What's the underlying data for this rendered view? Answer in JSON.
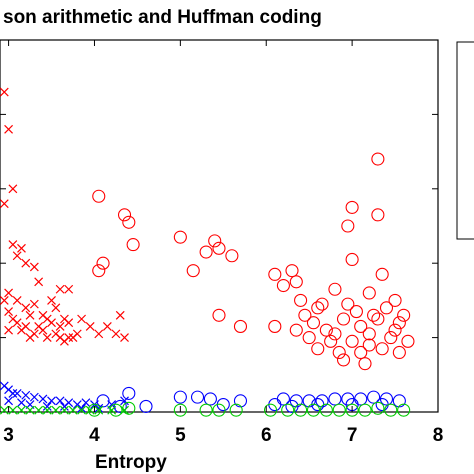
{
  "chart_data": {
    "type": "scatter",
    "title": "son arithmetic and Huffman coding",
    "xlabel": "Entropy",
    "ylabel": "",
    "xlim": [
      2.9,
      8.0
    ],
    "ylim": [
      0,
      10
    ],
    "xticks": [
      3,
      4,
      5,
      6,
      7,
      8
    ],
    "xtick_labels": [
      "3",
      "4",
      "5",
      "6",
      "7",
      "8"
    ],
    "yticks": [
      2,
      4,
      6,
      8
    ],
    "grid": false,
    "legend": "right, clipped",
    "series": [
      {
        "marker": "x",
        "color": "#ff0000",
        "points": [
          [
            2.95,
            8.6
          ],
          [
            3.0,
            7.6
          ],
          [
            3.05,
            6.0
          ],
          [
            2.95,
            5.6
          ],
          [
            3.1,
            4.2
          ],
          [
            3.05,
            4.5
          ],
          [
            3.15,
            4.4
          ],
          [
            3.2,
            4.0
          ],
          [
            3.3,
            3.9
          ],
          [
            3.35,
            3.5
          ],
          [
            3.5,
            3.0
          ],
          [
            3.6,
            3.3
          ],
          [
            3.7,
            3.3
          ],
          [
            3.85,
            2.5
          ],
          [
            3.95,
            2.3
          ],
          [
            4.15,
            2.3
          ],
          [
            4.35,
            2.0
          ],
          [
            3.0,
            3.2
          ],
          [
            3.1,
            3.0
          ],
          [
            3.2,
            2.8
          ],
          [
            3.3,
            2.9
          ],
          [
            3.4,
            2.6
          ],
          [
            3.5,
            2.4
          ],
          [
            3.6,
            2.3
          ],
          [
            3.7,
            2.4
          ],
          [
            3.8,
            2.1
          ],
          [
            3.05,
            2.5
          ],
          [
            3.15,
            2.2
          ],
          [
            3.25,
            2.0
          ],
          [
            3.35,
            2.3
          ],
          [
            3.45,
            2.0
          ],
          [
            3.55,
            2.1
          ],
          [
            3.65,
            1.9
          ],
          [
            3.75,
            2.0
          ],
          [
            2.95,
            3.0
          ],
          [
            3.0,
            2.7
          ],
          [
            3.1,
            2.4
          ],
          [
            3.2,
            2.3
          ],
          [
            3.3,
            2.1
          ],
          [
            3.4,
            2.2
          ],
          [
            3.6,
            2.0
          ],
          [
            3.7,
            2.0
          ],
          [
            4.05,
            2.1
          ],
          [
            4.25,
            2.1
          ],
          [
            4.3,
            2.6
          ],
          [
            3.55,
            2.8
          ],
          [
            3.25,
            2.6
          ],
          [
            3.0,
            2.2
          ],
          [
            3.45,
            2.5
          ],
          [
            3.65,
            2.5
          ]
        ]
      },
      {
        "marker": "o",
        "color": "#ff0000",
        "points": [
          [
            4.05,
            5.8
          ],
          [
            4.35,
            5.3
          ],
          [
            4.45,
            4.5
          ],
          [
            4.4,
            5.1
          ],
          [
            4.1,
            4.0
          ],
          [
            4.05,
            3.8
          ],
          [
            5.0,
            4.7
          ],
          [
            5.15,
            3.8
          ],
          [
            5.3,
            4.3
          ],
          [
            5.4,
            4.6
          ],
          [
            5.45,
            4.4
          ],
          [
            5.45,
            2.6
          ],
          [
            5.6,
            4.2
          ],
          [
            5.7,
            2.3
          ],
          [
            6.1,
            3.7
          ],
          [
            6.1,
            2.3
          ],
          [
            6.2,
            3.4
          ],
          [
            6.3,
            3.8
          ],
          [
            6.35,
            3.5
          ],
          [
            7.0,
            5.5
          ],
          [
            6.95,
            5.0
          ],
          [
            7.3,
            6.8
          ],
          [
            7.3,
            5.3
          ],
          [
            7.0,
            4.1
          ],
          [
            7.35,
            3.7
          ],
          [
            6.4,
            3.0
          ],
          [
            6.6,
            2.8
          ],
          [
            6.8,
            3.3
          ],
          [
            7.2,
            3.2
          ],
          [
            7.5,
            3.0
          ],
          [
            7.6,
            2.6
          ],
          [
            6.55,
            2.4
          ],
          [
            6.7,
            2.2
          ],
          [
            6.9,
            2.5
          ],
          [
            7.1,
            2.3
          ],
          [
            7.3,
            2.5
          ],
          [
            7.5,
            2.2
          ],
          [
            6.5,
            2.0
          ],
          [
            6.75,
            1.9
          ],
          [
            7.0,
            1.9
          ],
          [
            7.2,
            1.8
          ],
          [
            7.45,
            2.0
          ],
          [
            7.65,
            1.9
          ],
          [
            6.6,
            1.7
          ],
          [
            6.85,
            1.6
          ],
          [
            7.1,
            1.6
          ],
          [
            7.35,
            1.7
          ],
          [
            7.55,
            1.6
          ],
          [
            6.9,
            1.4
          ],
          [
            7.15,
            1.3
          ],
          [
            6.45,
            2.6
          ],
          [
            7.4,
            2.8
          ],
          [
            6.95,
            2.9
          ],
          [
            7.25,
            2.6
          ],
          [
            7.05,
            2.7
          ],
          [
            6.65,
            2.9
          ],
          [
            6.8,
            2.1
          ],
          [
            7.55,
            2.4
          ],
          [
            6.35,
            2.2
          ],
          [
            7.2,
            2.1
          ]
        ]
      },
      {
        "marker": "x",
        "color": "#0000ff",
        "points": [
          [
            2.95,
            0.7
          ],
          [
            3.0,
            0.6
          ],
          [
            3.05,
            0.5
          ],
          [
            3.1,
            0.5
          ],
          [
            3.2,
            0.45
          ],
          [
            3.3,
            0.4
          ],
          [
            3.4,
            0.35
          ],
          [
            3.5,
            0.3
          ],
          [
            3.6,
            0.3
          ],
          [
            3.7,
            0.25
          ],
          [
            3.8,
            0.2
          ],
          [
            3.9,
            0.25
          ],
          [
            4.0,
            0.2
          ],
          [
            4.2,
            0.2
          ],
          [
            4.35,
            0.3
          ],
          [
            3.0,
            0.3
          ],
          [
            3.15,
            0.25
          ],
          [
            3.25,
            0.2
          ],
          [
            3.45,
            0.15
          ],
          [
            3.65,
            0.15
          ],
          [
            3.85,
            0.1
          ],
          [
            4.05,
            0.1
          ]
        ]
      },
      {
        "marker": "o",
        "color": "#0000ff",
        "points": [
          [
            4.1,
            0.3
          ],
          [
            4.3,
            0.15
          ],
          [
            4.4,
            0.5
          ],
          [
            4.6,
            0.15
          ],
          [
            5.0,
            0.4
          ],
          [
            5.2,
            0.4
          ],
          [
            5.35,
            0.35
          ],
          [
            5.5,
            0.2
          ],
          [
            5.7,
            0.3
          ],
          [
            6.1,
            0.2
          ],
          [
            6.2,
            0.35
          ],
          [
            6.35,
            0.3
          ],
          [
            6.5,
            0.3
          ],
          [
            6.65,
            0.3
          ],
          [
            6.8,
            0.35
          ],
          [
            6.95,
            0.35
          ],
          [
            7.1,
            0.35
          ],
          [
            7.25,
            0.4
          ],
          [
            7.4,
            0.35
          ],
          [
            7.55,
            0.3
          ],
          [
            6.3,
            0.15
          ],
          [
            6.6,
            0.2
          ],
          [
            7.0,
            0.2
          ],
          [
            7.35,
            0.2
          ]
        ]
      },
      {
        "marker": "x",
        "color": "#00cc00",
        "points": [
          [
            2.95,
            0.05
          ],
          [
            3.05,
            0.05
          ],
          [
            3.15,
            0.05
          ],
          [
            3.25,
            0.05
          ],
          [
            3.35,
            0.05
          ],
          [
            3.45,
            0.05
          ],
          [
            3.55,
            0.05
          ],
          [
            3.65,
            0.05
          ],
          [
            3.75,
            0.05
          ],
          [
            3.85,
            0.05
          ],
          [
            3.95,
            0.05
          ],
          [
            4.05,
            0.05
          ],
          [
            4.2,
            0.05
          ],
          [
            4.35,
            0.05
          ]
        ]
      },
      {
        "marker": "o",
        "color": "#00cc00",
        "points": [
          [
            4.0,
            0.05
          ],
          [
            4.25,
            0.05
          ],
          [
            4.4,
            0.1
          ],
          [
            5.0,
            0.05
          ],
          [
            5.3,
            0.05
          ],
          [
            5.45,
            0.05
          ],
          [
            5.65,
            0.05
          ],
          [
            6.05,
            0.05
          ],
          [
            6.25,
            0.05
          ],
          [
            6.4,
            0.05
          ],
          [
            6.55,
            0.05
          ],
          [
            6.7,
            0.05
          ],
          [
            6.85,
            0.05
          ],
          [
            7.0,
            0.05
          ],
          [
            7.15,
            0.05
          ],
          [
            7.3,
            0.1
          ],
          [
            7.45,
            0.05
          ],
          [
            7.6,
            0.05
          ]
        ]
      }
    ]
  }
}
